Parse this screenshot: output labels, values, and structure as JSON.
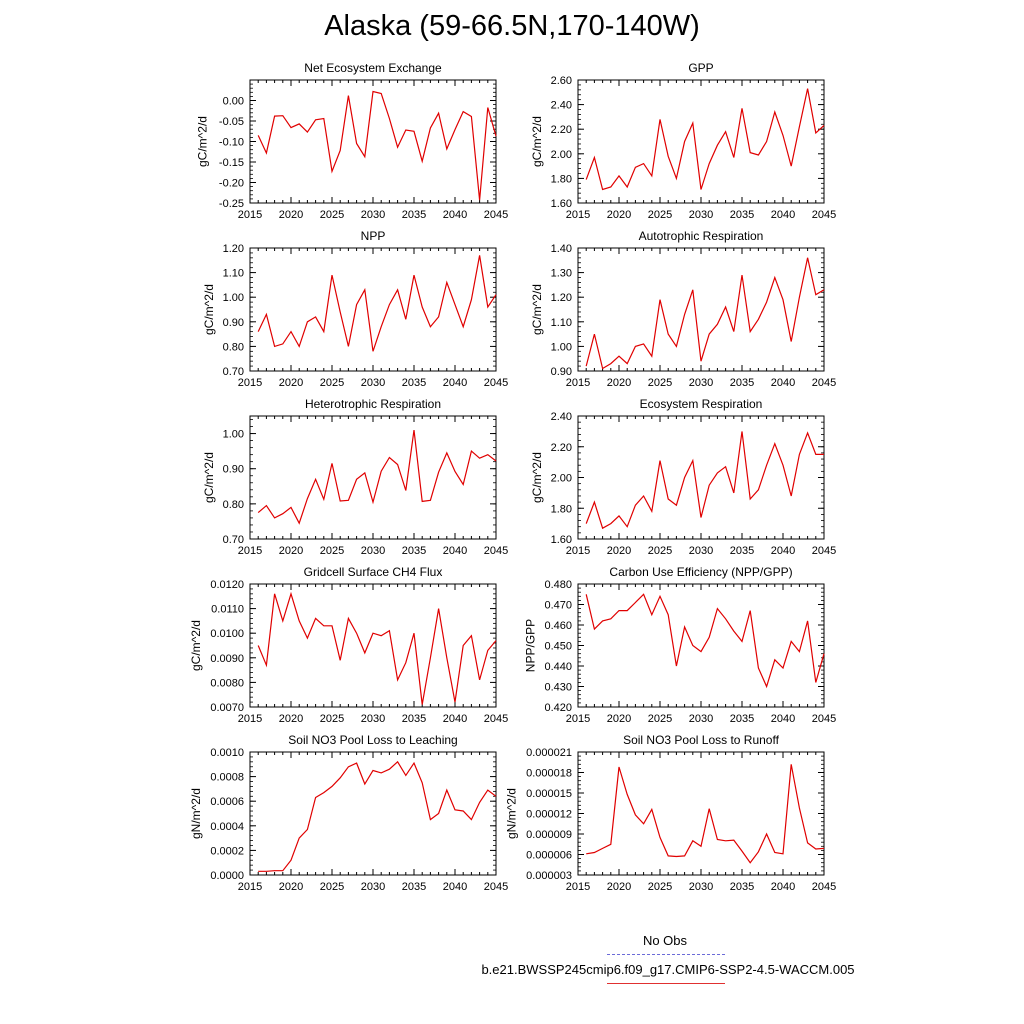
{
  "figure": {
    "title": "Alaska (59-66.5N,170-140W)"
  },
  "legend": {
    "obs_label": "No Obs",
    "model_label": "b.e21.BWSSP245cmip6.f09_g17.CMIP6-SSP2-4.5-WACCM.005",
    "obs_color": "#6b6bd8",
    "model_color": "#e00000"
  },
  "chart_data": [
    {
      "type": "line",
      "title": "Net Ecosystem Exchange",
      "ylabel": "gC/m^2/d",
      "xlim": [
        2015,
        2045
      ],
      "ylim": [
        -0.25,
        0.05
      ],
      "xticks": [
        "2015",
        "2020",
        "2025",
        "2030",
        "2035",
        "2040",
        "2045"
      ],
      "yticks": [
        "0.00",
        "-0.05",
        "-0.10",
        "-0.15",
        "-0.20",
        "-0.25"
      ],
      "ytick_values": [
        0.0,
        -0.05,
        -0.1,
        -0.15,
        -0.2,
        -0.25
      ],
      "x": [
        2016,
        2017,
        2018,
        2019,
        2020,
        2021,
        2022,
        2023,
        2024,
        2025,
        2026,
        2027,
        2028,
        2029,
        2030,
        2031,
        2032,
        2033,
        2034,
        2035,
        2036,
        2037,
        2038,
        2039,
        2040,
        2041,
        2042,
        2043,
        2044,
        2045
      ],
      "series": [
        {
          "values": [
            -0.085,
            -0.128,
            -0.038,
            -0.037,
            -0.066,
            -0.057,
            -0.077,
            -0.047,
            -0.044,
            -0.173,
            -0.122,
            0.012,
            -0.105,
            -0.137,
            0.022,
            0.017,
            -0.044,
            -0.114,
            -0.072,
            -0.075,
            -0.148,
            -0.067,
            -0.031,
            -0.118,
            -0.071,
            -0.027,
            -0.039,
            -0.243,
            -0.017,
            -0.087
          ]
        }
      ]
    },
    {
      "type": "line",
      "title": "GPP",
      "ylabel": "gC/m^2/d",
      "xlim": [
        2015,
        2045
      ],
      "ylim": [
        1.6,
        2.6
      ],
      "xticks": [
        "2015",
        "2020",
        "2025",
        "2030",
        "2035",
        "2040",
        "2045"
      ],
      "yticks": [
        "2.60",
        "2.40",
        "2.20",
        "2.00",
        "1.80",
        "1.60"
      ],
      "ytick_values": [
        2.6,
        2.4,
        2.2,
        2.0,
        1.8,
        1.6
      ],
      "x": [
        2016,
        2017,
        2018,
        2019,
        2020,
        2021,
        2022,
        2023,
        2024,
        2025,
        2026,
        2027,
        2028,
        2029,
        2030,
        2031,
        2032,
        2033,
        2034,
        2035,
        2036,
        2037,
        2038,
        2039,
        2040,
        2041,
        2042,
        2043,
        2044,
        2045
      ],
      "series": [
        {
          "values": [
            1.79,
            1.97,
            1.71,
            1.73,
            1.82,
            1.73,
            1.89,
            1.92,
            1.82,
            2.28,
            1.98,
            1.8,
            2.1,
            2.25,
            1.71,
            1.92,
            2.07,
            2.18,
            1.97,
            2.37,
            2.01,
            1.99,
            2.1,
            2.34,
            2.15,
            1.9,
            2.22,
            2.53,
            2.17,
            2.23
          ]
        }
      ]
    },
    {
      "type": "line",
      "title": "NPP",
      "ylabel": "gC/m^2/d",
      "xlim": [
        2015,
        2045
      ],
      "ylim": [
        0.7,
        1.2
      ],
      "xticks": [
        "2015",
        "2020",
        "2025",
        "2030",
        "2035",
        "2040",
        "2045"
      ],
      "yticks": [
        "1.20",
        "1.10",
        "1.00",
        "0.90",
        "0.80",
        "0.70"
      ],
      "ytick_values": [
        1.2,
        1.1,
        1.0,
        0.9,
        0.8,
        0.7
      ],
      "x": [
        2016,
        2017,
        2018,
        2019,
        2020,
        2021,
        2022,
        2023,
        2024,
        2025,
        2026,
        2027,
        2028,
        2029,
        2030,
        2031,
        2032,
        2033,
        2034,
        2035,
        2036,
        2037,
        2038,
        2039,
        2040,
        2041,
        2042,
        2043,
        2044,
        2045
      ],
      "series": [
        {
          "values": [
            0.86,
            0.93,
            0.8,
            0.81,
            0.86,
            0.8,
            0.9,
            0.92,
            0.86,
            1.09,
            0.94,
            0.8,
            0.97,
            1.03,
            0.78,
            0.88,
            0.97,
            1.03,
            0.91,
            1.09,
            0.96,
            0.88,
            0.92,
            1.06,
            0.97,
            0.88,
            0.99,
            1.17,
            0.96,
            1.01
          ]
        }
      ]
    },
    {
      "type": "line",
      "title": "Autotrophic Respiration",
      "ylabel": "gC/m^2/d",
      "xlim": [
        2015,
        2045
      ],
      "ylim": [
        0.9,
        1.4
      ],
      "xticks": [
        "2015",
        "2020",
        "2025",
        "2030",
        "2035",
        "2040",
        "2045"
      ],
      "yticks": [
        "1.40",
        "1.30",
        "1.20",
        "1.10",
        "1.00",
        "0.90"
      ],
      "ytick_values": [
        1.4,
        1.3,
        1.2,
        1.1,
        1.0,
        0.9
      ],
      "x": [
        2016,
        2017,
        2018,
        2019,
        2020,
        2021,
        2022,
        2023,
        2024,
        2025,
        2026,
        2027,
        2028,
        2029,
        2030,
        2031,
        2032,
        2033,
        2034,
        2035,
        2036,
        2037,
        2038,
        2039,
        2040,
        2041,
        2042,
        2043,
        2044,
        2045
      ],
      "series": [
        {
          "values": [
            0.92,
            1.05,
            0.91,
            0.93,
            0.96,
            0.93,
            1.0,
            1.01,
            0.96,
            1.19,
            1.05,
            1.0,
            1.13,
            1.23,
            0.94,
            1.05,
            1.09,
            1.16,
            1.06,
            1.29,
            1.06,
            1.11,
            1.18,
            1.28,
            1.19,
            1.02,
            1.2,
            1.36,
            1.21,
            1.23
          ]
        }
      ]
    },
    {
      "type": "line",
      "title": "Heterotrophic Respiration",
      "ylabel": "gC/m^2/d",
      "xlim": [
        2015,
        2045
      ],
      "ylim": [
        0.7,
        1.05
      ],
      "xticks": [
        "2015",
        "2020",
        "2025",
        "2030",
        "2035",
        "2040",
        "2045"
      ],
      "yticks": [
        "1.00",
        "0.90",
        "0.80",
        "0.70"
      ],
      "ytick_values": [
        1.0,
        0.9,
        0.8,
        0.7
      ],
      "x": [
        2016,
        2017,
        2018,
        2019,
        2020,
        2021,
        2022,
        2023,
        2024,
        2025,
        2026,
        2027,
        2028,
        2029,
        2030,
        2031,
        2032,
        2033,
        2034,
        2035,
        2036,
        2037,
        2038,
        2039,
        2040,
        2041,
        2042,
        2043,
        2044,
        2045
      ],
      "series": [
        {
          "values": [
            0.775,
            0.795,
            0.76,
            0.772,
            0.79,
            0.745,
            0.815,
            0.87,
            0.813,
            0.915,
            0.808,
            0.81,
            0.87,
            0.888,
            0.805,
            0.893,
            0.932,
            0.912,
            0.838,
            1.01,
            0.807,
            0.81,
            0.89,
            0.945,
            0.892,
            0.855,
            0.95,
            0.93,
            0.94,
            0.922
          ]
        }
      ]
    },
    {
      "type": "line",
      "title": "Ecosystem Respiration",
      "ylabel": "gC/m^2/d",
      "xlim": [
        2015,
        2045
      ],
      "ylim": [
        1.6,
        2.4
      ],
      "xticks": [
        "2015",
        "2020",
        "2025",
        "2030",
        "2035",
        "2040",
        "2045"
      ],
      "yticks": [
        "2.40",
        "2.20",
        "2.00",
        "1.80",
        "1.60"
      ],
      "ytick_values": [
        2.4,
        2.2,
        2.0,
        1.8,
        1.6
      ],
      "x": [
        2016,
        2017,
        2018,
        2019,
        2020,
        2021,
        2022,
        2023,
        2024,
        2025,
        2026,
        2027,
        2028,
        2029,
        2030,
        2031,
        2032,
        2033,
        2034,
        2035,
        2036,
        2037,
        2038,
        2039,
        2040,
        2041,
        2042,
        2043,
        2044,
        2045
      ],
      "series": [
        {
          "values": [
            1.7,
            1.84,
            1.67,
            1.7,
            1.75,
            1.68,
            1.82,
            1.88,
            1.78,
            2.11,
            1.86,
            1.82,
            2.0,
            2.11,
            1.74,
            1.95,
            2.03,
            2.07,
            1.9,
            2.3,
            1.86,
            1.92,
            2.08,
            2.22,
            2.08,
            1.88,
            2.15,
            2.29,
            2.15,
            2.15
          ]
        }
      ]
    },
    {
      "type": "line",
      "title": "Gridcell Surface CH4 Flux",
      "ylabel": "gC/m^2/d",
      "xlim": [
        2015,
        2045
      ],
      "ylim": [
        0.007,
        0.012
      ],
      "xticks": [
        "2015",
        "2020",
        "2025",
        "2030",
        "2035",
        "2040",
        "2045"
      ],
      "yticks": [
        "0.0120",
        "0.0110",
        "0.0100",
        "0.0090",
        "0.0080",
        "0.0070"
      ],
      "ytick_values": [
        0.012,
        0.011,
        0.01,
        0.009,
        0.008,
        0.007
      ],
      "x": [
        2016,
        2017,
        2018,
        2019,
        2020,
        2021,
        2022,
        2023,
        2024,
        2025,
        2026,
        2027,
        2028,
        2029,
        2030,
        2031,
        2032,
        2033,
        2034,
        2035,
        2036,
        2037,
        2038,
        2039,
        2040,
        2041,
        2042,
        2043,
        2044,
        2045
      ],
      "series": [
        {
          "values": [
            0.0095,
            0.0087,
            0.0116,
            0.0105,
            0.0116,
            0.0105,
            0.0098,
            0.0106,
            0.0103,
            0.0103,
            0.0089,
            0.0106,
            0.01,
            0.0092,
            0.01,
            0.0099,
            0.0101,
            0.0081,
            0.0088,
            0.01,
            0.0071,
            0.009,
            0.011,
            0.009,
            0.0072,
            0.0095,
            0.0099,
            0.0081,
            0.0093,
            0.0097
          ]
        }
      ]
    },
    {
      "type": "line",
      "title": "Carbon Use Efficiency (NPP/GPP)",
      "ylabel": "NPP/GPP",
      "xlim": [
        2015,
        2045
      ],
      "ylim": [
        0.42,
        0.48
      ],
      "xticks": [
        "2015",
        "2020",
        "2025",
        "2030",
        "2035",
        "2040",
        "2045"
      ],
      "yticks": [
        "0.480",
        "0.470",
        "0.460",
        "0.450",
        "0.440",
        "0.430",
        "0.420"
      ],
      "ytick_values": [
        0.48,
        0.47,
        0.46,
        0.45,
        0.44,
        0.43,
        0.42
      ],
      "x": [
        2016,
        2017,
        2018,
        2019,
        2020,
        2021,
        2022,
        2023,
        2024,
        2025,
        2026,
        2027,
        2028,
        2029,
        2030,
        2031,
        2032,
        2033,
        2034,
        2035,
        2036,
        2037,
        2038,
        2039,
        2040,
        2041,
        2042,
        2043,
        2044,
        2045
      ],
      "series": [
        {
          "values": [
            0.475,
            0.458,
            0.462,
            0.463,
            0.467,
            0.467,
            0.471,
            0.475,
            0.465,
            0.474,
            0.465,
            0.44,
            0.459,
            0.45,
            0.447,
            0.454,
            0.468,
            0.463,
            0.457,
            0.452,
            0.467,
            0.439,
            0.43,
            0.443,
            0.439,
            0.452,
            0.447,
            0.462,
            0.432,
            0.446
          ]
        }
      ]
    },
    {
      "type": "line",
      "title": "Soil NO3 Pool Loss to Leaching",
      "ylabel": "gN/m^2/d",
      "xlim": [
        2015,
        2045
      ],
      "ylim": [
        0.0,
        0.001
      ],
      "xticks": [
        "2015",
        "2020",
        "2025",
        "2030",
        "2035",
        "2040",
        "2045"
      ],
      "yticks": [
        "0.0010",
        "0.0008",
        "0.0006",
        "0.0004",
        "0.0002",
        "0.0000"
      ],
      "ytick_values": [
        0.001,
        0.0008,
        0.0006,
        0.0004,
        0.0002,
        0.0
      ],
      "x": [
        2016,
        2017,
        2018,
        2019,
        2020,
        2021,
        2022,
        2023,
        2024,
        2025,
        2026,
        2027,
        2028,
        2029,
        2030,
        2031,
        2032,
        2033,
        2034,
        2035,
        2036,
        2037,
        2038,
        2039,
        2040,
        2041,
        2042,
        2043,
        2044,
        2045
      ],
      "series": [
        {
          "values": [
            3e-05,
            3e-05,
            3.5e-05,
            3.5e-05,
            0.00012,
            0.0003,
            0.00037,
            0.00063,
            0.00067,
            0.00072,
            0.00079,
            0.00088,
            0.00091,
            0.00074,
            0.00085,
            0.00083,
            0.00086,
            0.00092,
            0.00081,
            0.00091,
            0.00075,
            0.00045,
            0.0005,
            0.00069,
            0.00053,
            0.00052,
            0.00045,
            0.00059,
            0.00069,
            0.00064
          ]
        }
      ]
    },
    {
      "type": "line",
      "title": "Soil NO3 Pool Loss to Runoff",
      "ylabel": "gN/m^2/d",
      "xlim": [
        2015,
        2045
      ],
      "ylim": [
        3e-06,
        2.1e-05
      ],
      "xticks": [
        "2015",
        "2020",
        "2025",
        "2030",
        "2035",
        "2040",
        "2045"
      ],
      "yticks": [
        "0.000021",
        "0.000018",
        "0.000015",
        "0.000012",
        "0.000009",
        "0.000006",
        "0.000003"
      ],
      "ytick_values": [
        2.1e-05,
        1.8e-05,
        1.5e-05,
        1.2e-05,
        9e-06,
        6e-06,
        3e-06
      ],
      "x": [
        2016,
        2017,
        2018,
        2019,
        2020,
        2021,
        2022,
        2023,
        2024,
        2025,
        2026,
        2027,
        2028,
        2029,
        2030,
        2031,
        2032,
        2033,
        2034,
        2035,
        2036,
        2037,
        2038,
        2039,
        2040,
        2041,
        2042,
        2043,
        2044,
        2045
      ],
      "series": [
        {
          "values": [
            6.1e-06,
            6.3e-06,
            6.9e-06,
            7.5e-06,
            1.88e-05,
            1.48e-05,
            1.18e-05,
            1.05e-05,
            1.26e-05,
            8.5e-06,
            5.8e-06,
            5.7e-06,
            5.8e-06,
            8e-06,
            7.2e-06,
            1.27e-05,
            8.2e-06,
            8e-06,
            8.1e-06,
            6.5e-06,
            4.8e-06,
            6.4e-06,
            9e-06,
            6.3e-06,
            6.1e-06,
            1.92e-05,
            1.28e-05,
            7.7e-06,
            6.8e-06,
            6.9e-06
          ]
        }
      ]
    }
  ]
}
